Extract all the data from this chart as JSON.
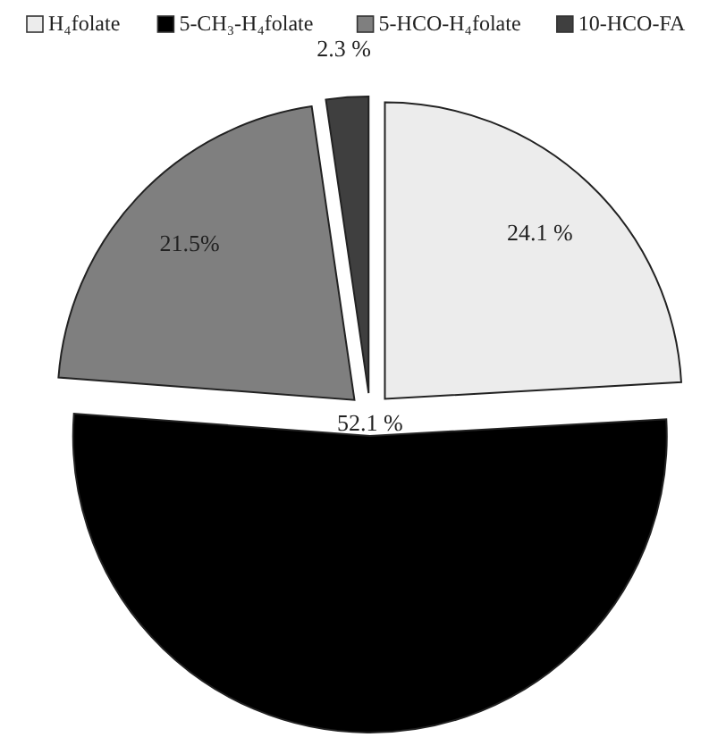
{
  "chart_data": {
    "type": "pie",
    "categories": [
      "H₄folate",
      "5-CH₃-H₄folate",
      "5-HCO-H₄folate",
      "10-HCO-FA"
    ],
    "values": [
      24.1,
      52.1,
      21.5,
      2.3
    ],
    "colors": [
      "#ececec",
      "#000000",
      "#7f7f7f",
      "#3f3f3f"
    ],
    "value_labels": [
      "24.1 %",
      "52.1 %",
      "21.5%",
      "2.3 %"
    ],
    "legend": "top"
  }
}
